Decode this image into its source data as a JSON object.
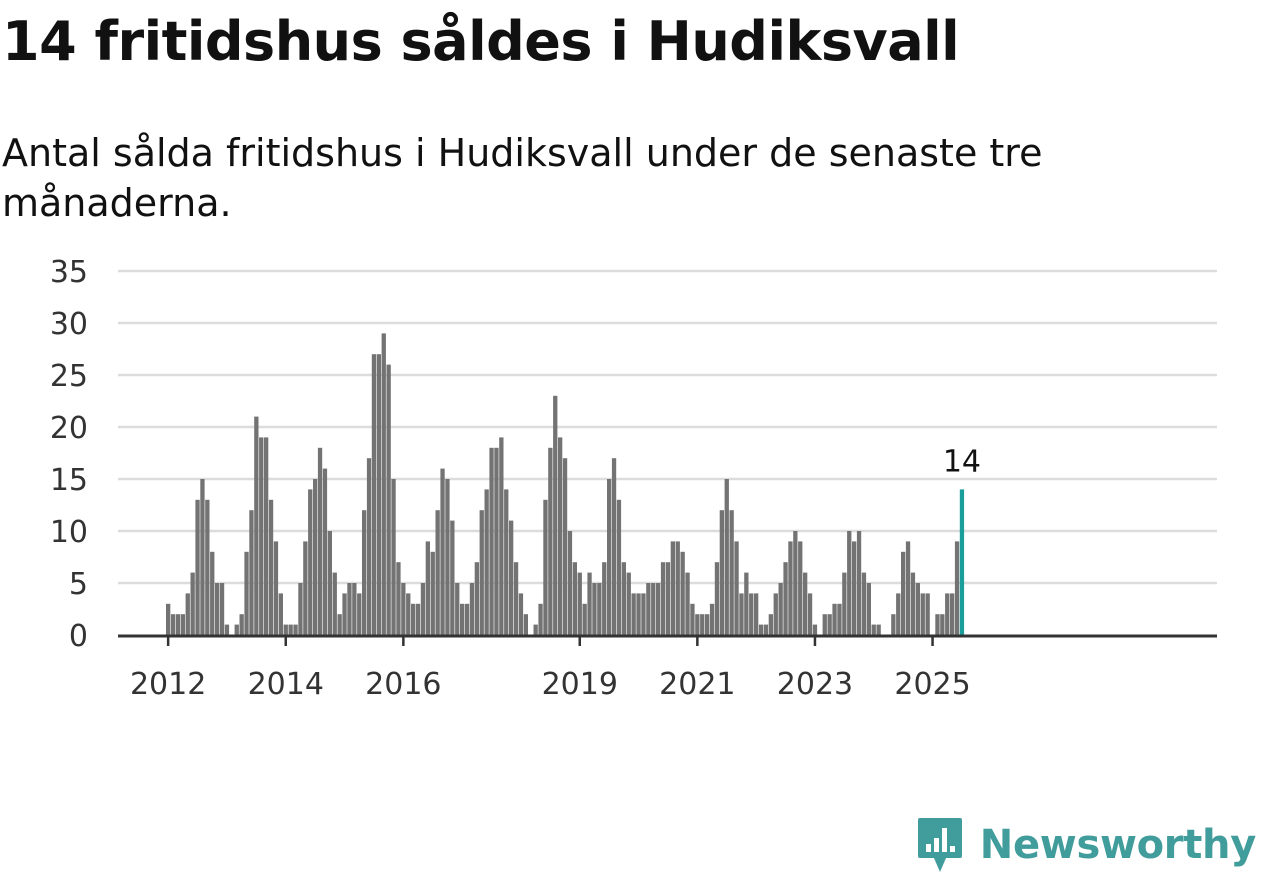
{
  "title": "14 fritidshus såldes i Hudiksvall",
  "subtitle": "Antal sålda fritidshus i Hudiksvall under de senaste tre månaderna.",
  "logo": {
    "text": "Newsworthy",
    "color": "#419d9b"
  },
  "chart_data": {
    "type": "bar",
    "title": "14 fritidshus såldes i Hudiksvall",
    "subtitle": "Antal sålda fritidshus i Hudiksvall under de senaste tre månaderna.",
    "xlabel": "",
    "ylabel": "",
    "ylim": [
      0,
      35
    ],
    "yticks": [
      0,
      5,
      10,
      15,
      20,
      25,
      30,
      35
    ],
    "grid": true,
    "legend": "none",
    "bar_color": "#737373",
    "highlight_color": "#1a9e9b",
    "start": "2012-01",
    "xtick_labels": [
      {
        "label": "2012",
        "date": "2012-01"
      },
      {
        "label": "2014",
        "date": "2014-01"
      },
      {
        "label": "2016",
        "date": "2016-01"
      },
      {
        "label": "2019",
        "date": "2019-01"
      },
      {
        "label": "2021",
        "date": "2021-01"
      },
      {
        "label": "2023",
        "date": "2023-01"
      },
      {
        "label": "2025",
        "date": "2025-01"
      }
    ],
    "values": [
      3,
      2,
      2,
      2,
      4,
      6,
      13,
      15,
      13,
      8,
      5,
      5,
      1,
      0,
      1,
      2,
      8,
      12,
      21,
      19,
      19,
      13,
      9,
      4,
      1,
      1,
      1,
      5,
      9,
      14,
      15,
      18,
      16,
      10,
      6,
      2,
      4,
      5,
      5,
      4,
      12,
      17,
      27,
      27,
      29,
      26,
      15,
      7,
      5,
      4,
      3,
      3,
      5,
      9,
      8,
      12,
      16,
      15,
      11,
      5,
      3,
      3,
      5,
      7,
      12,
      14,
      18,
      18,
      19,
      14,
      11,
      7,
      4,
      2,
      0,
      1,
      3,
      13,
      18,
      23,
      19,
      17,
      10,
      7,
      6,
      3,
      6,
      5,
      5,
      7,
      15,
      17,
      13,
      7,
      6,
      4,
      4,
      4,
      5,
      5,
      5,
      7,
      7,
      9,
      9,
      8,
      6,
      3,
      2,
      2,
      2,
      3,
      7,
      12,
      15,
      12,
      9,
      4,
      6,
      4,
      4,
      1,
      1,
      2,
      4,
      5,
      7,
      9,
      10,
      9,
      6,
      4,
      1,
      0,
      2,
      2,
      3,
      3,
      6,
      10,
      9,
      10,
      6,
      5,
      1,
      1,
      0,
      0,
      2,
      4,
      8,
      9,
      6,
      5,
      4,
      4,
      0,
      2,
      2,
      4,
      4,
      9,
      14
    ],
    "highlight": {
      "date": "2025-07",
      "value": 14,
      "label": "14"
    }
  }
}
